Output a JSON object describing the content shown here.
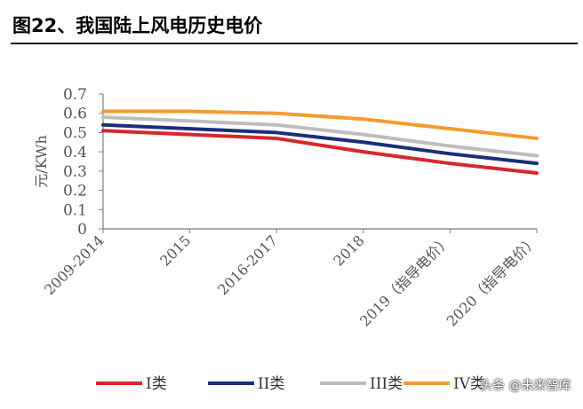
{
  "figure": {
    "title": "图22、我国陆上风电历史电价"
  },
  "watermark": {
    "text": "头条 @未来智库"
  },
  "colors": {
    "I": "#d9262b",
    "II": "#1a2f7a",
    "III": "#bdbdbd",
    "IV": "#f59a2e",
    "axis": "#808080",
    "text": "#555555"
  },
  "chart_data": {
    "type": "line",
    "title": "",
    "xlabel": "",
    "ylabel": "元/KWh",
    "ylim": [
      0,
      0.7
    ],
    "yticks": [
      "0",
      "0.1",
      "0.2",
      "0.3",
      "0.4",
      "0.5",
      "0.6",
      "0.7"
    ],
    "grid": false,
    "legend_position": "bottom",
    "categories": [
      "2009-2014",
      "2015",
      "2016-2017",
      "2018",
      "2019（指导电价）",
      "2020（指导电价）"
    ],
    "series": [
      {
        "name": "I类",
        "color": "#d9262b",
        "values": [
          0.51,
          0.49,
          0.47,
          0.4,
          0.34,
          0.29
        ]
      },
      {
        "name": "II类",
        "color": "#1a2f7a",
        "values": [
          0.54,
          0.52,
          0.5,
          0.45,
          0.39,
          0.34
        ]
      },
      {
        "name": "III类",
        "color": "#bdbdbd",
        "values": [
          0.58,
          0.56,
          0.54,
          0.49,
          0.43,
          0.38
        ]
      },
      {
        "name": "IV类",
        "color": "#f59a2e",
        "values": [
          0.61,
          0.61,
          0.6,
          0.57,
          0.52,
          0.47
        ]
      }
    ]
  }
}
